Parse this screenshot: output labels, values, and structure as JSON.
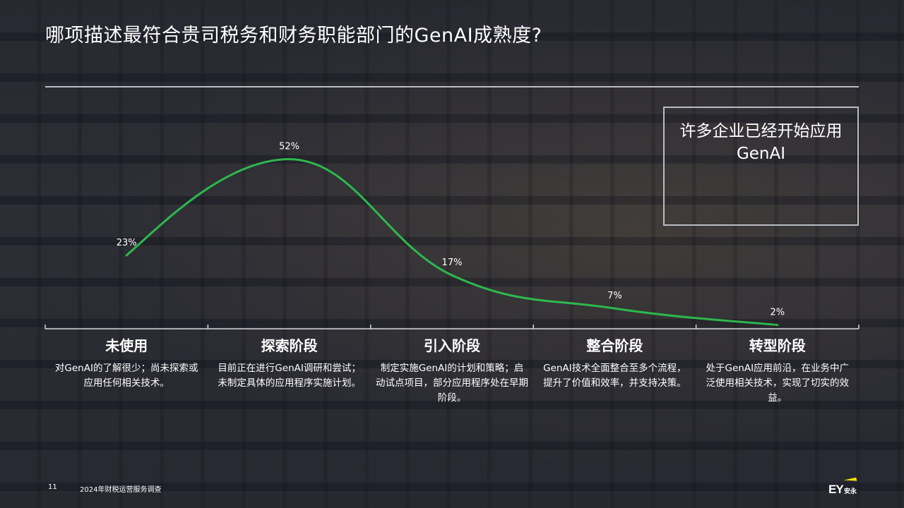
{
  "title": "哪项描述最符合贵司税务和财务职能部门的GenAI成熟度?",
  "callout": "许多企业已经开始应用GenAI",
  "chart_data": {
    "type": "line",
    "categories": [
      "未使用",
      "探索阶段",
      "引入阶段",
      "整合阶段",
      "转型阶段"
    ],
    "values": [
      23,
      52,
      17,
      7,
      2
    ],
    "value_labels": [
      "23%",
      "52%",
      "17%",
      "7%",
      "2%"
    ],
    "descriptions": [
      "对GenAI的了解很少；尚未探索或应用任何相关技术。",
      "目前正在进行GenAI调研和尝试；未制定具体的应用程序实施计划。",
      "制定实施GenAI的计划和策略；启动试点项目，部分应用程序处在早期阶段。",
      "GenAI技术全面整合至多个流程，提升了价值和效率，并支持决策。",
      "处于GenAI应用前沿，在业务中广泛使用相关技术，实现了切实的效益。"
    ],
    "line_color": "#2db84d",
    "ylim": [
      0,
      60
    ]
  },
  "footer": {
    "page_number": "11",
    "survey": "2024年财税运营服务调查",
    "logo_text": "EY",
    "logo_cn": "安永",
    "logo_accent": "#ffe600"
  }
}
